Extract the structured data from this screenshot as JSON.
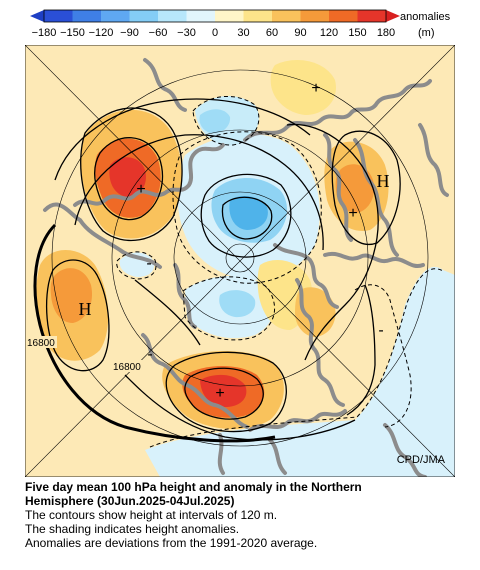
{
  "colorbar": {
    "ticks": [
      "−180",
      "−150",
      "−120",
      "−90",
      "−60",
      "−30",
      "0",
      "30",
      "60",
      "90",
      "120",
      "150",
      "180"
    ],
    "unit_label": "anomalies",
    "unit": "(m)",
    "colors": [
      "#2a4fd6",
      "#3f7fe6",
      "#5fa8f2",
      "#84cdf6",
      "#b7e7fb",
      "#e2f6fc",
      "#fff6c8",
      "#fde48a",
      "#f9c25c",
      "#f59a3a",
      "#ef6a26",
      "#e5352a"
    ]
  },
  "map": {
    "contour_labels": [
      "16800",
      "16800"
    ],
    "high_labels": [
      "H",
      "H"
    ],
    "plus_marks": [
      "+",
      "+",
      "+",
      "+"
    ],
    "minus_marks": [
      "-",
      "-",
      "-"
    ],
    "credit": "CPD/JMA"
  },
  "caption": {
    "title_line1": "Five day mean 100 hPa height and anomaly in the Northern",
    "title_line2": "Hemisphere (30Jun.2025-04Jul.2025)",
    "line3": "The contours show height at intervals of 120 m.",
    "line4": "The shading indicates height anomalies.",
    "line5": "Anomalies are deviations from the 1991-2020 average."
  }
}
